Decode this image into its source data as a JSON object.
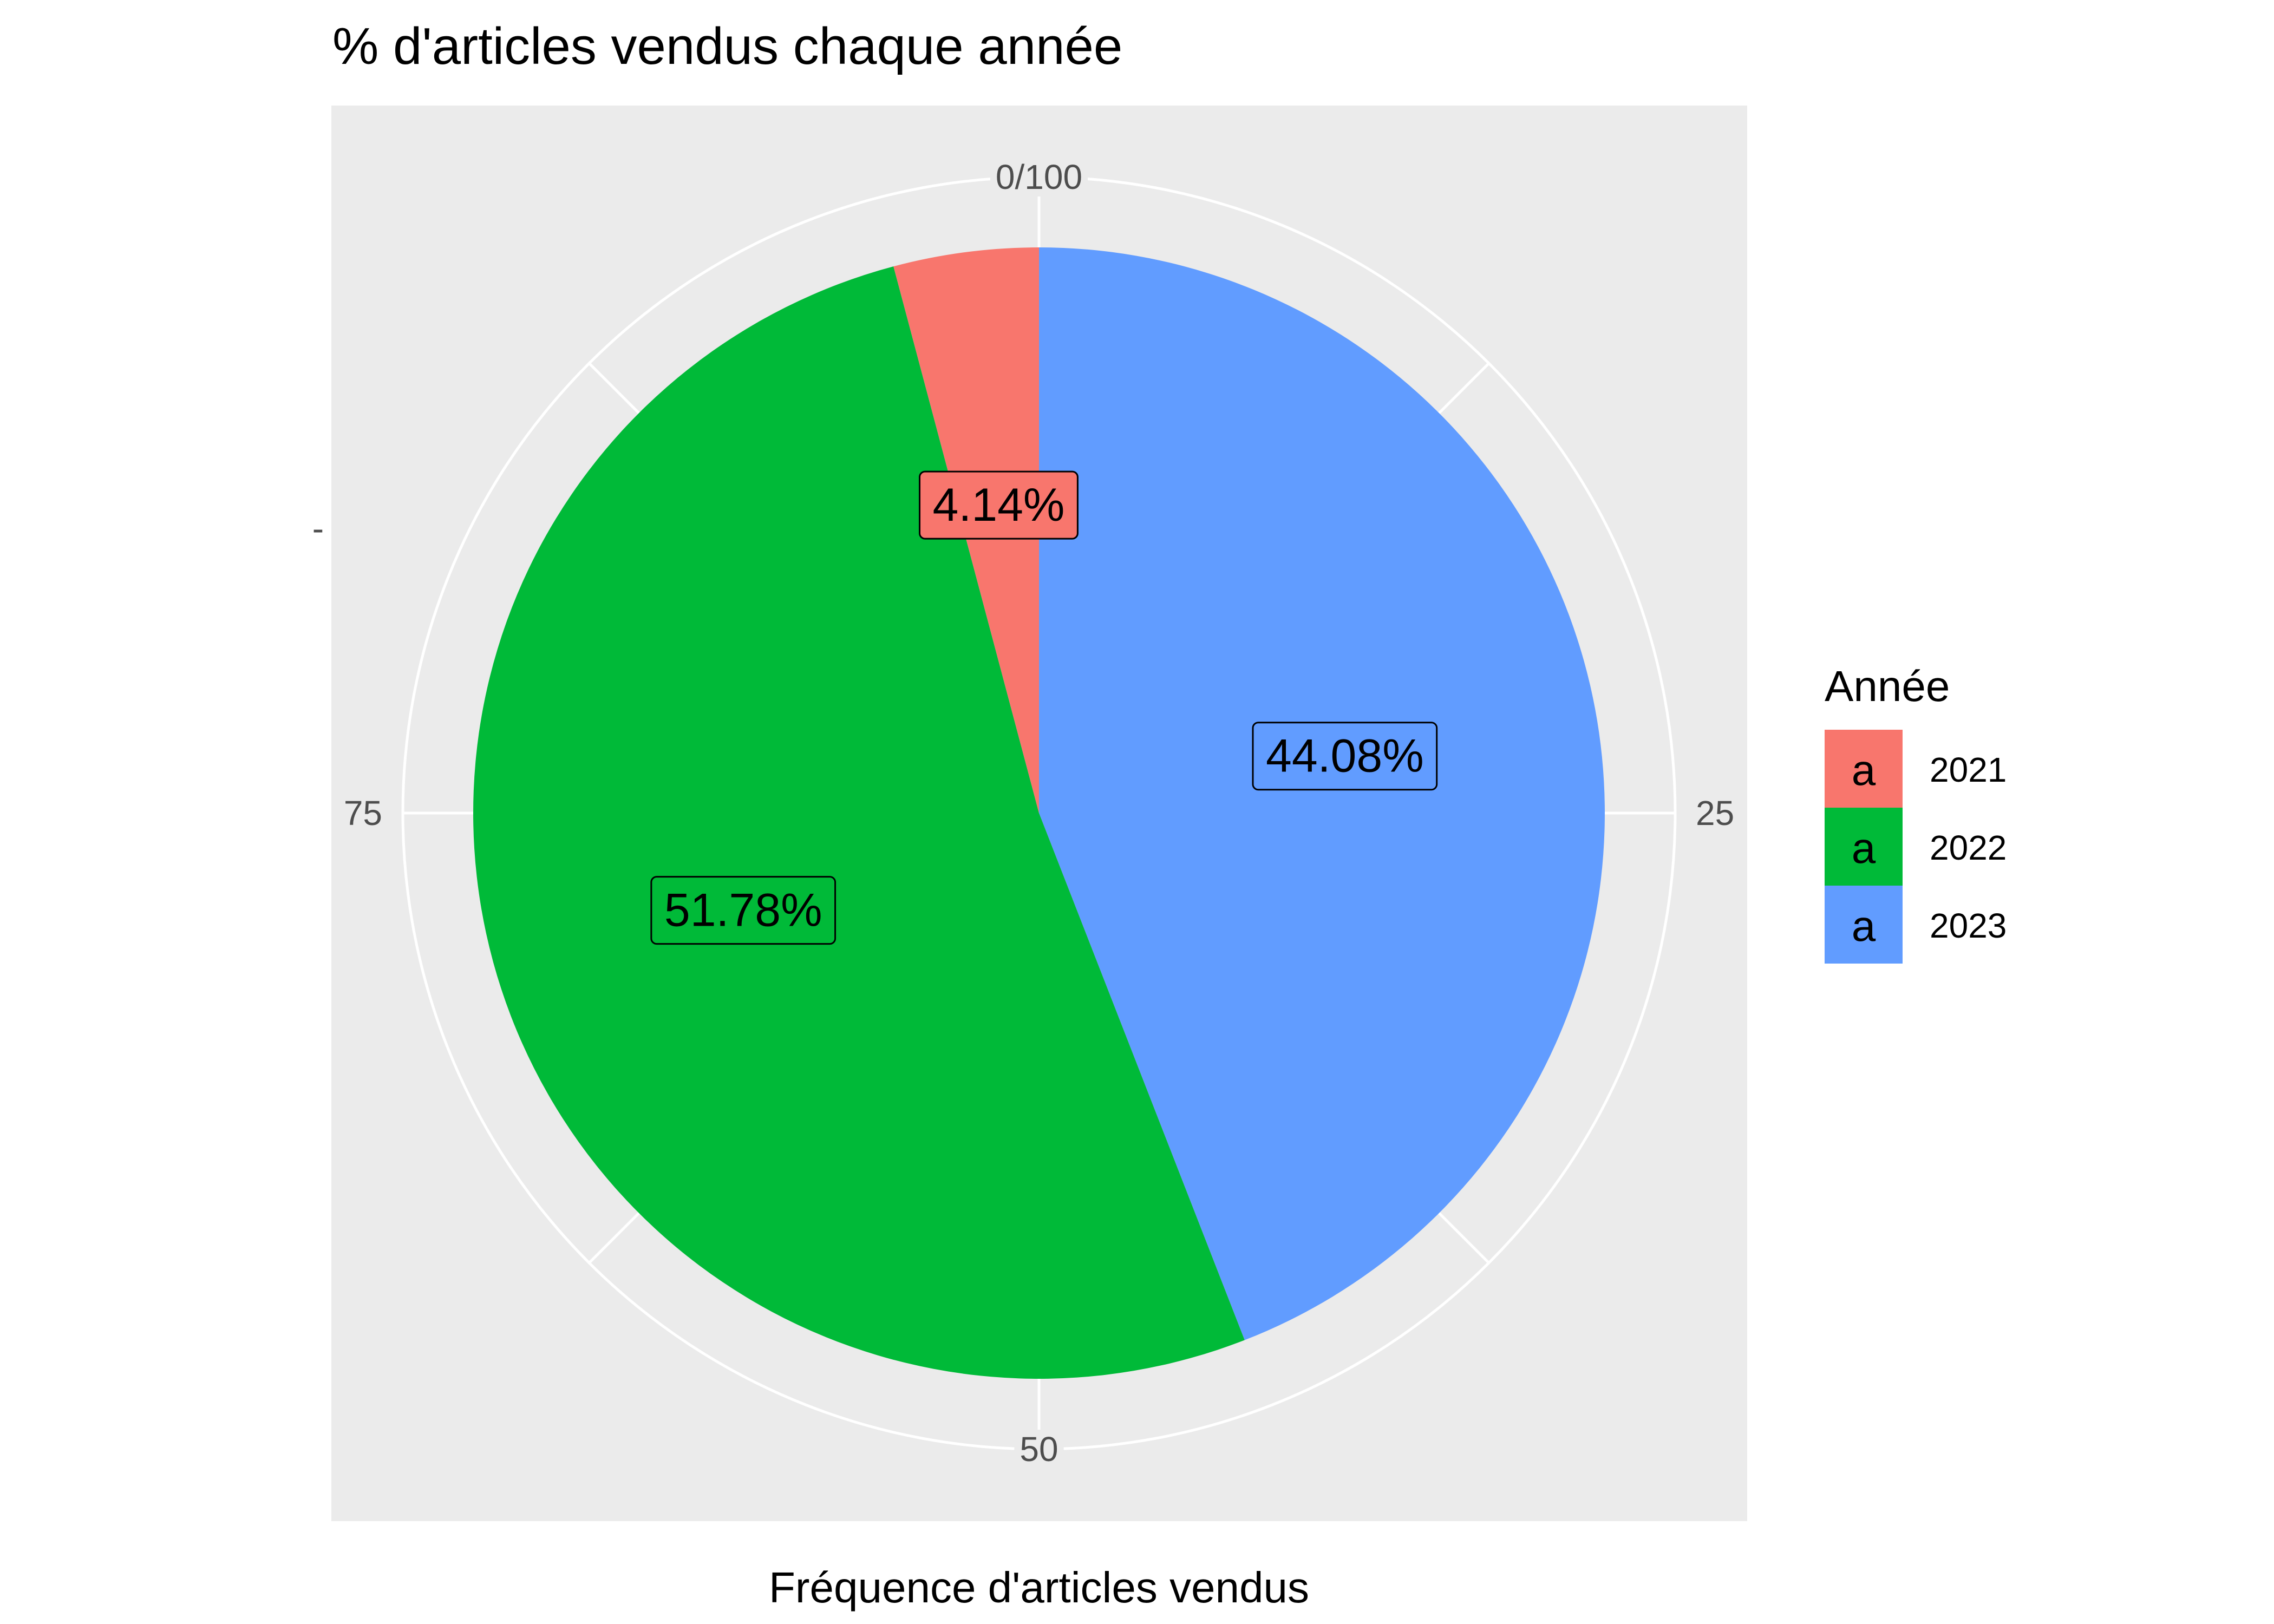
{
  "chart_data": {
    "type": "pie",
    "title": "% d'articles vendus chaque année",
    "xlabel": "Fréquence d'articles vendus",
    "ylabel": "",
    "theta_ticks": [
      {
        "value": 0,
        "label": "0/100"
      },
      {
        "value": 25,
        "label": "25"
      },
      {
        "value": 50,
        "label": "50"
      },
      {
        "value": 75,
        "label": "75"
      }
    ],
    "y_tick_label": "-",
    "categories": [
      "2021",
      "2022",
      "2023"
    ],
    "values": [
      4.14,
      51.78,
      44.08
    ],
    "labels": [
      "4.14%",
      "51.78%",
      "44.08%"
    ],
    "colors": [
      "#F8766D",
      "#00BA38",
      "#619CFF"
    ],
    "stack_order": [
      "2023",
      "2022",
      "2021"
    ],
    "direction": "clockwise",
    "start": "top",
    "legend": {
      "title": "Année",
      "position": "right",
      "key_glyph": "a"
    },
    "panel_background": "#EBEBEB",
    "grid_color": "#FFFFFF",
    "grid": true
  }
}
